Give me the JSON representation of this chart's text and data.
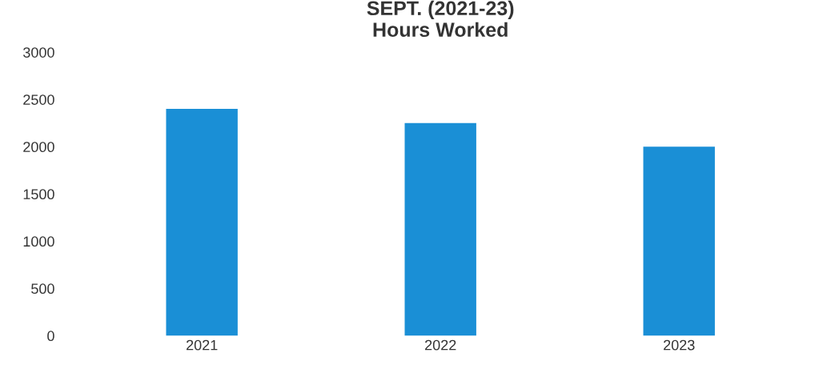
{
  "chart_data": {
    "type": "bar",
    "title": "SEPT. (2021-23)\nHours Worked",
    "categories": [
      "2021",
      "2022",
      "2023"
    ],
    "values": [
      2400,
      2250,
      2000
    ],
    "color": "#1a8fd6",
    "ylim": [
      0,
      3000
    ],
    "yticks": [
      0,
      500,
      1000,
      1500,
      2000,
      2500,
      3000
    ],
    "grid": false,
    "legend": false
  }
}
